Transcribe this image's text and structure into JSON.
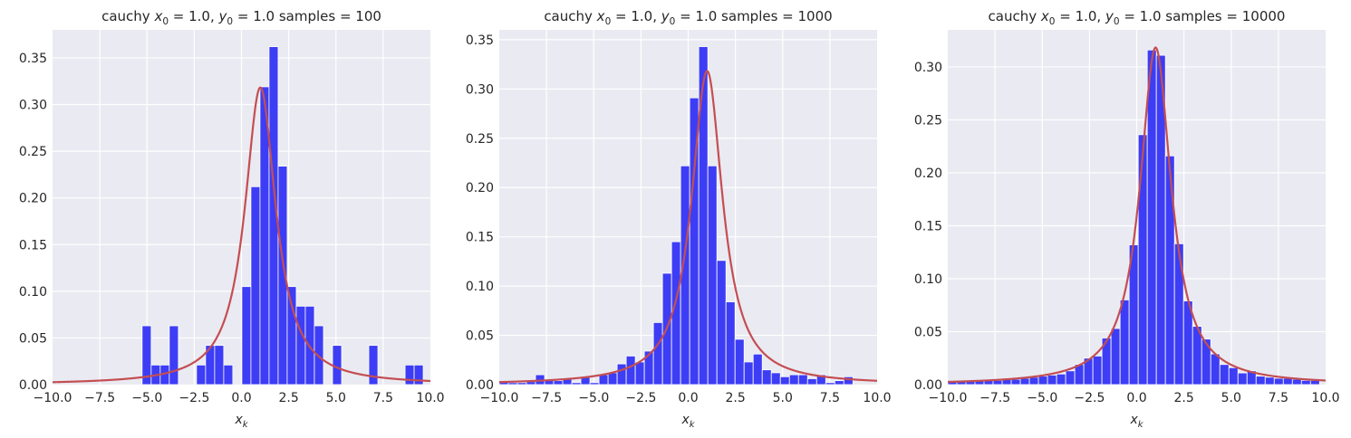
{
  "chart_data": [
    {
      "type": "bar",
      "title": "cauchy x₀ = 1.0, y₀ = 1.0  samples = 100",
      "title_parts": [
        "cauchy ",
        "x",
        "0",
        " = 1.0, ",
        "y",
        "0",
        " = 1.0  samples = 100"
      ],
      "xlabel_parts": [
        "x",
        "k"
      ],
      "xlim": [
        -10,
        10
      ],
      "ylim": [
        0,
        0.38
      ],
      "xticks": [
        -10,
        -7.5,
        -5,
        -2.5,
        0,
        2.5,
        5,
        7.5,
        10
      ],
      "xtick_labels": [
        "−10.0",
        "−7.5",
        "−5.0",
        "−2.5",
        "0.0",
        "2.5",
        "5.0",
        "7.5",
        "10.0"
      ],
      "yticks": [
        0,
        0.05,
        0.1,
        0.15,
        0.2,
        0.25,
        0.3,
        0.35
      ],
      "ytick_labels": [
        "0.00",
        "0.05",
        "0.10",
        "0.15",
        "0.20",
        "0.25",
        "0.30",
        "0.35"
      ],
      "bin_width": 0.48,
      "bins": [
        {
          "x": -5.26,
          "h": 0.063
        },
        {
          "x": -4.78,
          "h": 0.021
        },
        {
          "x": -4.3,
          "h": 0.021
        },
        {
          "x": -3.82,
          "h": 0.063
        },
        {
          "x": -2.38,
          "h": 0.021
        },
        {
          "x": -1.9,
          "h": 0.042
        },
        {
          "x": -1.42,
          "h": 0.042
        },
        {
          "x": -0.94,
          "h": 0.021
        },
        {
          "x": 0.02,
          "h": 0.105
        },
        {
          "x": 0.5,
          "h": 0.212
        },
        {
          "x": 0.98,
          "h": 0.319
        },
        {
          "x": 1.46,
          "h": 0.362
        },
        {
          "x": 1.94,
          "h": 0.234
        },
        {
          "x": 2.42,
          "h": 0.105
        },
        {
          "x": 2.9,
          "h": 0.084
        },
        {
          "x": 3.38,
          "h": 0.084
        },
        {
          "x": 3.86,
          "h": 0.063
        },
        {
          "x": 4.82,
          "h": 0.042
        },
        {
          "x": 6.74,
          "h": 0.042
        },
        {
          "x": 8.66,
          "h": 0.021
        },
        {
          "x": 9.14,
          "h": 0.021
        }
      ],
      "pdf": {
        "x0": 1.0,
        "gamma": 1.0
      }
    },
    {
      "type": "bar",
      "title": "cauchy x₀ = 1.0, y₀ = 1.0  samples = 1000",
      "title_parts": [
        "cauchy ",
        "x",
        "0",
        " = 1.0, ",
        "y",
        "0",
        " = 1.0  samples = 1000"
      ],
      "xlabel_parts": [
        "x",
        "k"
      ],
      "xlim": [
        -10,
        10
      ],
      "ylim": [
        0,
        0.36
      ],
      "xticks": [
        -10,
        -7.5,
        -5,
        -2.5,
        0,
        2.5,
        5,
        7.5,
        10
      ],
      "xtick_labels": [
        "−10.0",
        "−7.5",
        "−5.0",
        "−2.5",
        "0.0",
        "2.5",
        "5.0",
        "7.5",
        "10.0"
      ],
      "yticks": [
        0,
        0.05,
        0.1,
        0.15,
        0.2,
        0.25,
        0.3,
        0.35
      ],
      "ytick_labels": [
        "0.00",
        "0.05",
        "0.10",
        "0.15",
        "0.20",
        "0.25",
        "0.30",
        "0.35"
      ],
      "bin_width": 0.48,
      "bins": [
        {
          "x": -10.0,
          "h": 0.003
        },
        {
          "x": -9.52,
          "h": 0.002
        },
        {
          "x": -9.04,
          "h": 0.002
        },
        {
          "x": -8.56,
          "h": 0.003
        },
        {
          "x": -8.08,
          "h": 0.01
        },
        {
          "x": -7.6,
          "h": 0.004
        },
        {
          "x": -7.12,
          "h": 0.004
        },
        {
          "x": -6.64,
          "h": 0.006
        },
        {
          "x": -6.16,
          "h": 0.002
        },
        {
          "x": -5.68,
          "h": 0.008
        },
        {
          "x": -5.2,
          "h": 0.002
        },
        {
          "x": -4.72,
          "h": 0.01
        },
        {
          "x": -4.24,
          "h": 0.012
        },
        {
          "x": -3.76,
          "h": 0.021
        },
        {
          "x": -3.28,
          "h": 0.029
        },
        {
          "x": -2.8,
          "h": 0.023
        },
        {
          "x": -2.32,
          "h": 0.034
        },
        {
          "x": -1.84,
          "h": 0.063
        },
        {
          "x": -1.36,
          "h": 0.113
        },
        {
          "x": -0.88,
          "h": 0.145
        },
        {
          "x": -0.4,
          "h": 0.222
        },
        {
          "x": 0.08,
          "h": 0.291
        },
        {
          "x": 0.56,
          "h": 0.343
        },
        {
          "x": 1.04,
          "h": 0.222
        },
        {
          "x": 1.52,
          "h": 0.126
        },
        {
          "x": 2.0,
          "h": 0.084
        },
        {
          "x": 2.48,
          "h": 0.046
        },
        {
          "x": 2.96,
          "h": 0.023
        },
        {
          "x": 3.44,
          "h": 0.031
        },
        {
          "x": 3.92,
          "h": 0.015
        },
        {
          "x": 4.4,
          "h": 0.012
        },
        {
          "x": 4.88,
          "h": 0.008
        },
        {
          "x": 5.36,
          "h": 0.01
        },
        {
          "x": 5.84,
          "h": 0.01
        },
        {
          "x": 6.32,
          "h": 0.006
        },
        {
          "x": 6.8,
          "h": 0.01
        },
        {
          "x": 7.28,
          "h": 0.002
        },
        {
          "x": 7.76,
          "h": 0.004
        },
        {
          "x": 8.24,
          "h": 0.008
        }
      ],
      "pdf": {
        "x0": 1.0,
        "gamma": 1.0
      }
    },
    {
      "type": "bar",
      "title": "cauchy x₀ = 1.0, y₀ = 1.0  samples = 10000",
      "title_parts": [
        "cauchy ",
        "x",
        "0",
        " = 1.0, ",
        "y",
        "0",
        " = 1.0  samples = 10000"
      ],
      "xlabel_parts": [
        "x",
        "k"
      ],
      "xlim": [
        -10,
        10
      ],
      "ylim": [
        0,
        0.335
      ],
      "xticks": [
        -10,
        -7.5,
        -5,
        -2.5,
        0,
        2.5,
        5,
        7.5,
        10
      ],
      "xtick_labels": [
        "−10.0",
        "−7.5",
        "−5.0",
        "−2.5",
        "0.0",
        "2.5",
        "5.0",
        "7.5",
        "10.0"
      ],
      "yticks": [
        0,
        0.05,
        0.1,
        0.15,
        0.2,
        0.25,
        0.3
      ],
      "ytick_labels": [
        "0.00",
        "0.05",
        "0.10",
        "0.15",
        "0.20",
        "0.25",
        "0.30"
      ],
      "bin_width": 0.48,
      "bins": [
        {
          "x": -10.0,
          "h": 0.003
        },
        {
          "x": -9.52,
          "h": 0.003
        },
        {
          "x": -9.04,
          "h": 0.003
        },
        {
          "x": -8.56,
          "h": 0.004
        },
        {
          "x": -8.08,
          "h": 0.004
        },
        {
          "x": -7.6,
          "h": 0.004
        },
        {
          "x": -7.12,
          "h": 0.005
        },
        {
          "x": -6.64,
          "h": 0.005
        },
        {
          "x": -6.16,
          "h": 0.006
        },
        {
          "x": -5.68,
          "h": 0.007
        },
        {
          "x": -5.2,
          "h": 0.008
        },
        {
          "x": -4.72,
          "h": 0.009
        },
        {
          "x": -4.24,
          "h": 0.01
        },
        {
          "x": -3.76,
          "h": 0.013
        },
        {
          "x": -3.28,
          "h": 0.019
        },
        {
          "x": -2.8,
          "h": 0.025
        },
        {
          "x": -2.32,
          "h": 0.027
        },
        {
          "x": -1.84,
          "h": 0.044
        },
        {
          "x": -1.36,
          "h": 0.053
        },
        {
          "x": -0.88,
          "h": 0.08
        },
        {
          "x": -0.4,
          "h": 0.132
        },
        {
          "x": 0.08,
          "h": 0.236
        },
        {
          "x": 0.56,
          "h": 0.316
        },
        {
          "x": 1.04,
          "h": 0.311
        },
        {
          "x": 1.52,
          "h": 0.216
        },
        {
          "x": 2.0,
          "h": 0.133
        },
        {
          "x": 2.48,
          "h": 0.079
        },
        {
          "x": 2.96,
          "h": 0.055
        },
        {
          "x": 3.44,
          "h": 0.043
        },
        {
          "x": 3.92,
          "h": 0.029
        },
        {
          "x": 4.4,
          "h": 0.019
        },
        {
          "x": 4.88,
          "h": 0.016
        },
        {
          "x": 5.36,
          "h": 0.011
        },
        {
          "x": 5.84,
          "h": 0.013
        },
        {
          "x": 6.32,
          "h": 0.008
        },
        {
          "x": 6.8,
          "h": 0.007
        },
        {
          "x": 7.28,
          "h": 0.006
        },
        {
          "x": 7.76,
          "h": 0.006
        },
        {
          "x": 8.24,
          "h": 0.005
        },
        {
          "x": 8.72,
          "h": 0.004
        },
        {
          "x": 9.2,
          "h": 0.004
        }
      ],
      "pdf": {
        "x0": 1.0,
        "gamma": 1.0
      }
    }
  ],
  "colors": {
    "axes_bg": "#eaeaf2",
    "grid": "#ffffff",
    "bar_fill": "#3d3df5",
    "bar_edge": "#ffffff",
    "curve": "#c44e52",
    "text": "#262626"
  }
}
